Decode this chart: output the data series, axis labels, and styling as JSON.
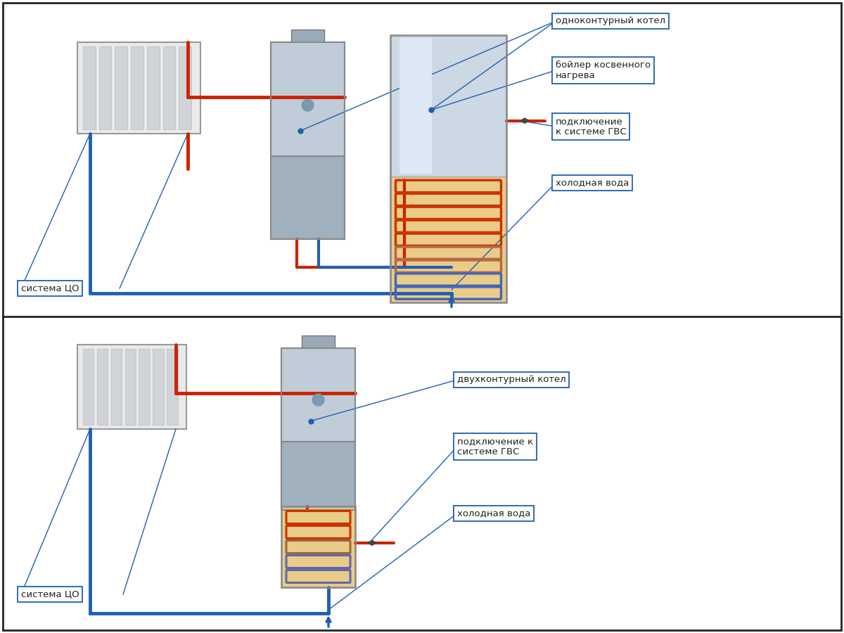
{
  "bg": "#ffffff",
  "border": "#222222",
  "blue": "#2060b0",
  "red": "#cc2200",
  "gray_light": "#d0d8e0",
  "gray_mid": "#a8b8c4",
  "gray_dark": "#8898a8",
  "silver_light": "#dde8f0",
  "silver_mid": "#c8d8e8",
  "tan": "#e8cc88",
  "panel1": {
    "sistema_tso": "система ЦО",
    "label1": "одноконтурный котел",
    "label2": "бойлер косвенного\nнагрева",
    "label3": "подключение\nк системе ГВС",
    "label4": "холодная вода"
  },
  "panel2": {
    "sistema_tso": "система ЦО",
    "label1": "двухконтурный котел",
    "label2": "подключение к\nсистеме ГВС",
    "label3": "холодная вода"
  }
}
